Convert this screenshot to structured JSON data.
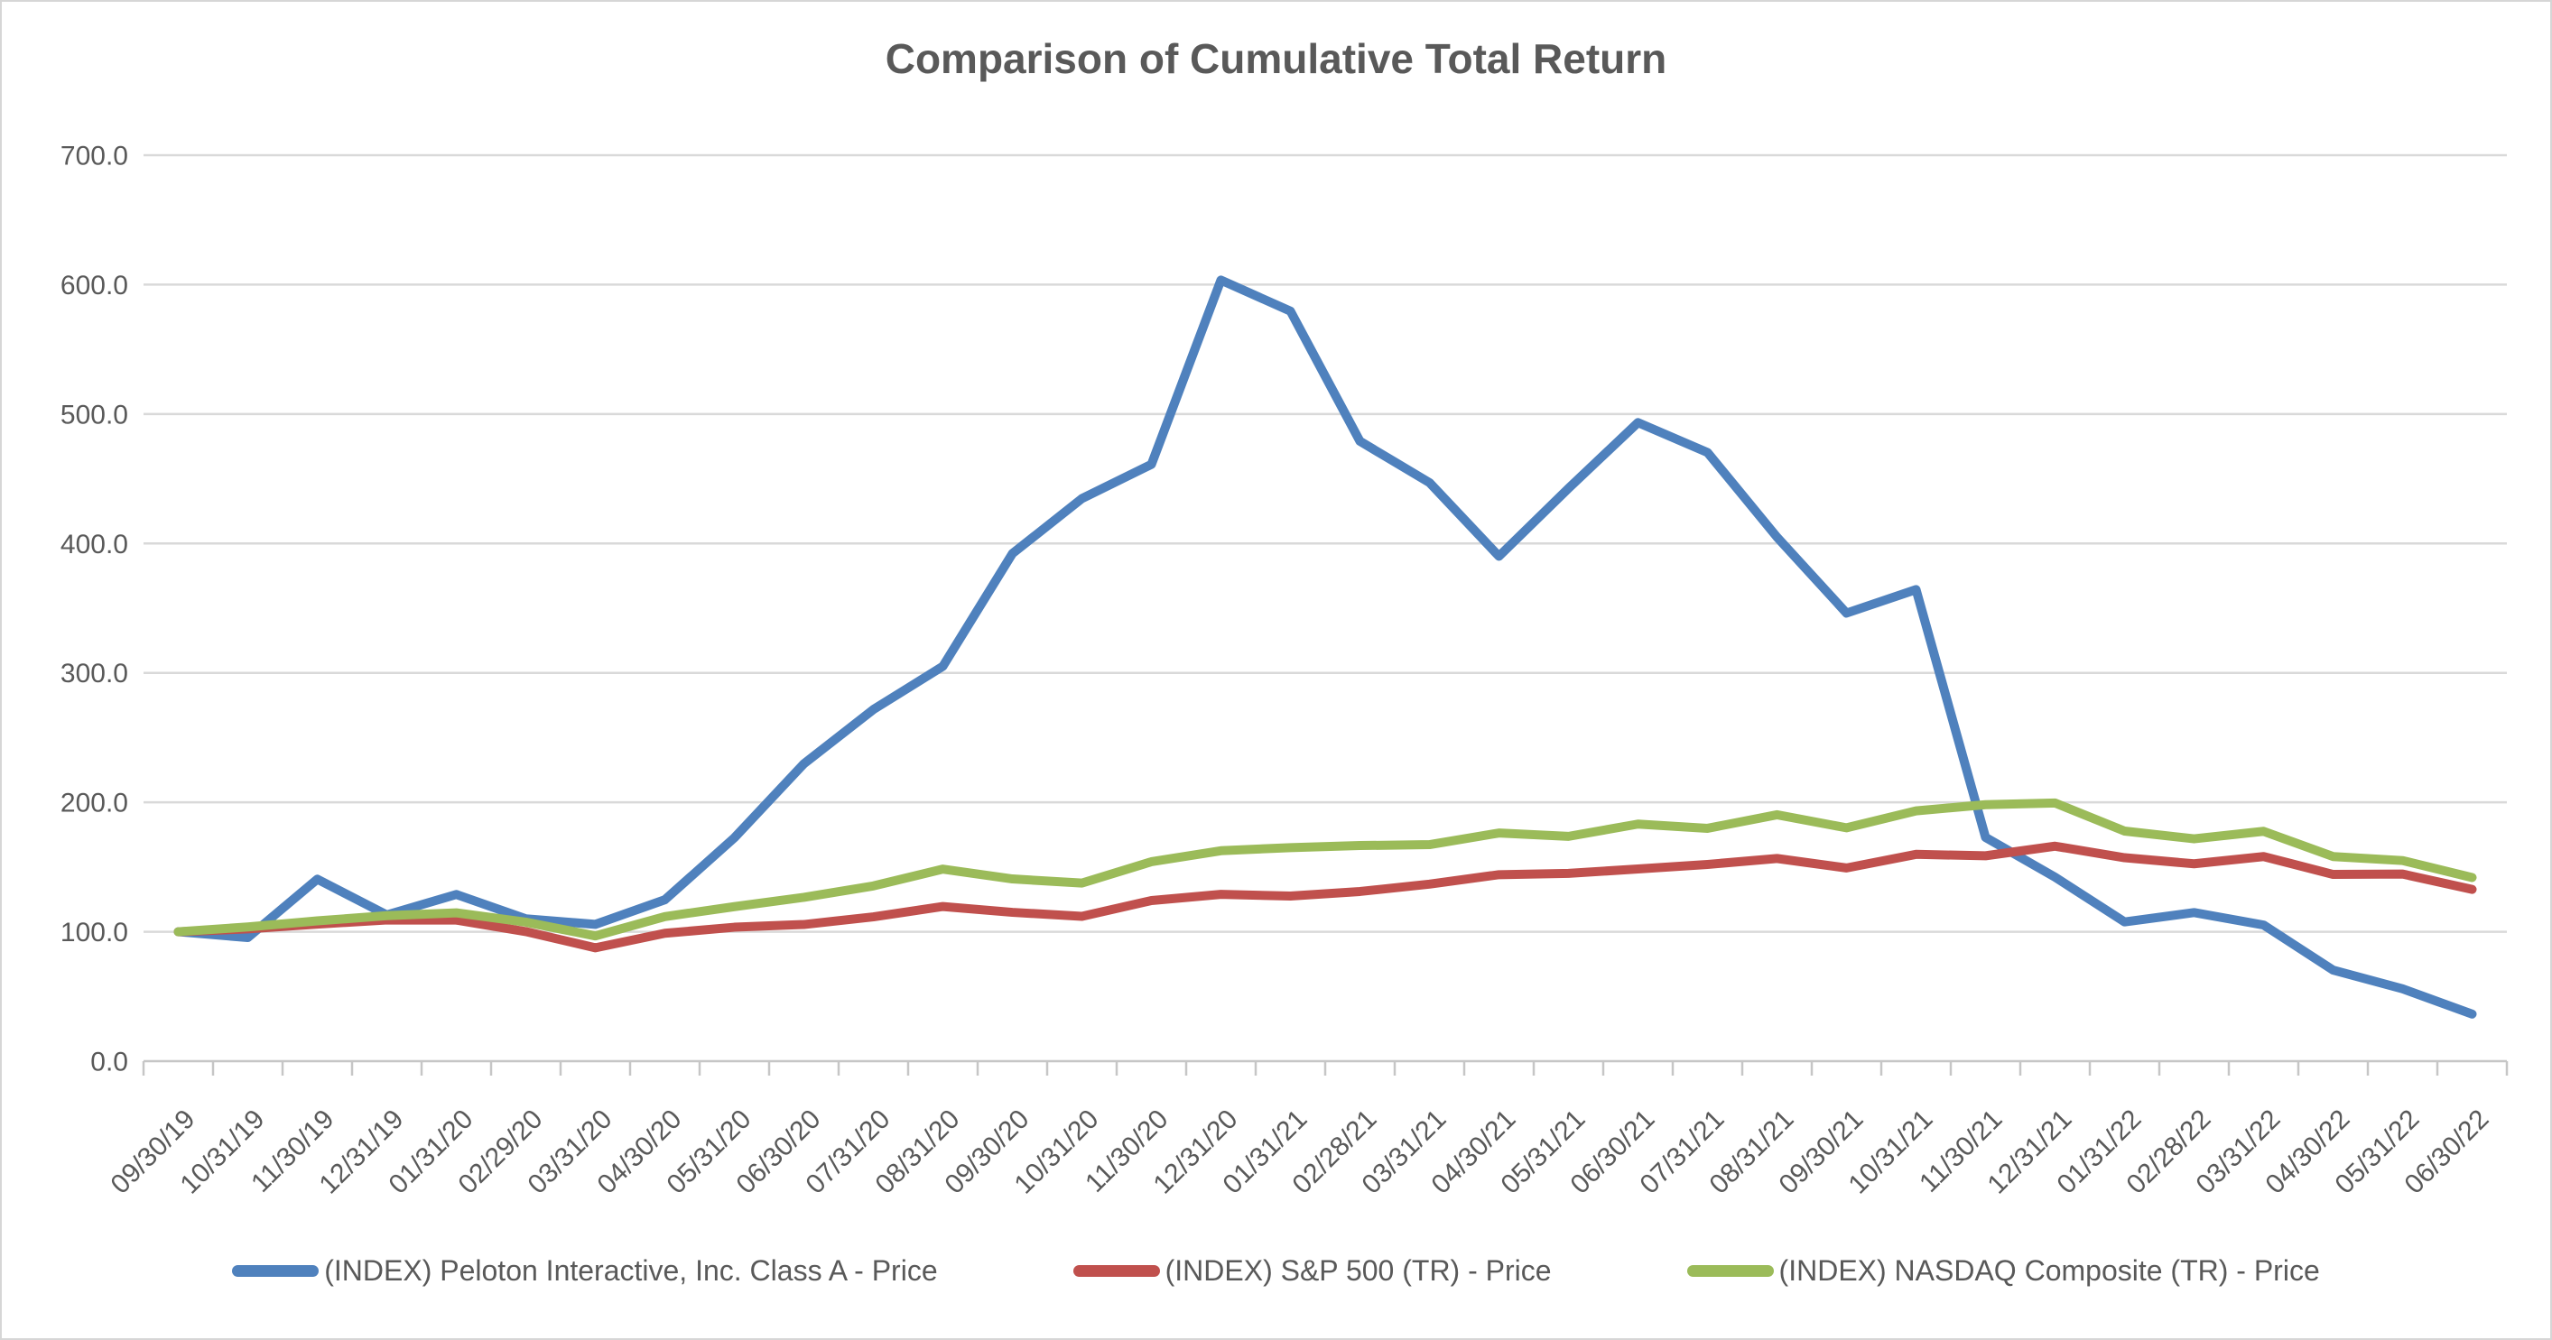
{
  "chart_data": {
    "type": "line",
    "title": "Comparison of Cumulative Total Return",
    "xlabel": "",
    "ylabel": "",
    "ylim": [
      0,
      760
    ],
    "y_ticks": [
      0,
      100,
      200,
      300,
      400,
      500,
      600,
      700
    ],
    "y_tick_labels": [
      "0.0",
      "100.0",
      "200.0",
      "300.0",
      "400.0",
      "500.0",
      "600.0",
      "700.0"
    ],
    "grid": "horizontal",
    "legend_position": "bottom",
    "x_labels": [
      "09/30/19",
      "10/31/19",
      "11/30/19",
      "12/31/19",
      "01/31/20",
      "02/29/20",
      "03/31/20",
      "04/30/20",
      "05/31/20",
      "06/30/20",
      "07/31/20",
      "08/31/20",
      "09/30/20",
      "10/31/20",
      "11/30/20",
      "12/31/20",
      "01/31/21",
      "02/28/21",
      "03/31/21",
      "04/30/21",
      "05/31/21",
      "06/30/21",
      "07/31/21",
      "08/31/21",
      "09/30/21",
      "10/31/21",
      "11/30/21",
      "12/31/21",
      "01/31/22",
      "02/28/22",
      "03/31/22",
      "04/30/22",
      "05/31/22",
      "06/30/22"
    ],
    "series": [
      {
        "id": "peloton",
        "name": "(INDEX) Peloton Interactive, Inc. Class A - Price",
        "color": "#4f81bd",
        "values": [
          100.0,
          95.5,
          140.6,
          113.0,
          128.8,
          110.0,
          105.7,
          124.7,
          172.6,
          229.8,
          271.7,
          305.1,
          392.2,
          434.7,
          461.1,
          603.5,
          579.5,
          479.0,
          447.0,
          390.1,
          442.6,
          493.4,
          470.3,
          404.9,
          346.2,
          364.4,
          172.9,
          142.2,
          107.6,
          114.8,
          105.2,
          70.4,
          55.9,
          36.4
        ]
      },
      {
        "id": "sp500",
        "name": "(INDEX) S&P 500 (TR) - Price",
        "color": "#c0504d",
        "values": [
          100.0,
          102.2,
          105.9,
          109.1,
          109.0,
          100.1,
          87.6,
          98.8,
          103.5,
          105.6,
          111.5,
          119.5,
          115.0,
          111.9,
          124.1,
          128.9,
          127.6,
          131.1,
          136.8,
          144.1,
          145.1,
          148.5,
          152.0,
          156.6,
          149.3,
          159.8,
          158.7,
          166.1,
          157.2,
          152.5,
          158.1,
          144.3,
          144.6,
          132.7
        ]
      },
      {
        "id": "nasdaq",
        "name": "(INDEX) NASDAQ Composite (TR) - Price",
        "color": "#9bbb59",
        "values": [
          100.0,
          103.7,
          108.4,
          112.4,
          114.6,
          107.4,
          96.8,
          111.7,
          119.4,
          126.6,
          135.4,
          148.4,
          140.8,
          137.6,
          154.1,
          162.6,
          165.0,
          166.6,
          167.3,
          176.3,
          173.7,
          183.2,
          179.9,
          190.4,
          180.3,
          193.4,
          198.2,
          199.5,
          177.8,
          171.8,
          177.6,
          158.1,
          155.0,
          141.9
        ]
      }
    ],
    "colors": {
      "text": "#595959",
      "gridline": "#d9d9d9",
      "axis": "#c6c6c6",
      "background": "#ffffff"
    }
  }
}
